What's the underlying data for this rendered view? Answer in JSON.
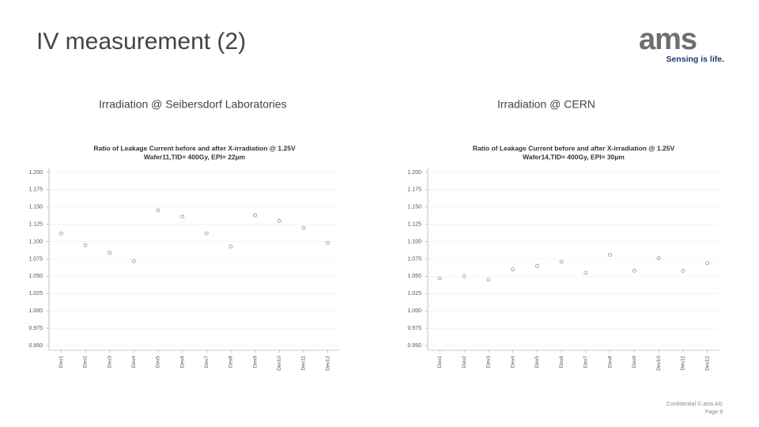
{
  "title": "IV measurement (2)",
  "logo": {
    "name": "ams",
    "tagline": "Sensing is life."
  },
  "panels": [
    "Irradiation @ Seibersdorf Laboratories",
    "Irradiation @ CERN"
  ],
  "footer": {
    "confidential": "Confidential © ams AG",
    "page": "Page 9"
  },
  "chart_data": [
    {
      "type": "scatter",
      "title": "Ratio of Leakage Current before and after X-irradiation @ 1.25V",
      "subtitle": "Wafer11,TID= 400Gy, EPI= 22µm",
      "categories": [
        "Dev1",
        "Dev2",
        "Dev3",
        "Dev4",
        "Dev5",
        "Dev6",
        "Dev7",
        "Dev8",
        "Dev9",
        "Dev10",
        "Dev11",
        "Dev12"
      ],
      "values": [
        1.112,
        1.095,
        1.084,
        1.072,
        1.145,
        1.136,
        1.112,
        1.093,
        1.138,
        1.13,
        1.12,
        1.098
      ],
      "color": "#8a8fb0",
      "grid": true,
      "ylim": [
        0.95,
        1.2
      ],
      "yticks": [
        {
          "value": 1.2,
          "label": "1.200"
        },
        {
          "value": 1.175,
          "label": "1.175"
        },
        {
          "value": 1.15,
          "label": "1.150"
        },
        {
          "value": 1.125,
          "label": "1.125"
        },
        {
          "value": 1.1,
          "label": "1.100"
        },
        {
          "value": 1.075,
          "label": "1.075"
        },
        {
          "value": 1.05,
          "label": "1.050"
        },
        {
          "value": 1.025,
          "label": "1.025"
        },
        {
          "value": 1,
          "label": "1.000"
        },
        {
          "value": 0.975,
          "label": "0.975"
        },
        {
          "value": 0.95,
          "label": "0.950"
        }
      ]
    },
    {
      "type": "scatter",
      "title": "Ratio of Leakage Current before and after X-irradiation @ 1.25V",
      "subtitle": "Wafer14,TID= 400Gy, EPI= 30µm",
      "categories": [
        "Dev1",
        "Dev2",
        "Dev3",
        "Dev4",
        "Dev5",
        "Dev6",
        "Dev7",
        "Dev8",
        "Dev9",
        "Dev10",
        "Dev11",
        "Dev12"
      ],
      "values": [
        1.047,
        1.05,
        1.045,
        1.06,
        1.065,
        1.071,
        1.055,
        1.081,
        1.058,
        1.076,
        1.058,
        1.069
      ],
      "color": "#8a8fb0",
      "grid": true,
      "ylim": [
        0.95,
        1.2
      ],
      "yticks": [
        {
          "value": 1.2,
          "label": "1.200"
        },
        {
          "value": 1.175,
          "label": "1.175"
        },
        {
          "value": 1.15,
          "label": "1.150"
        },
        {
          "value": 1.125,
          "label": "1.125"
        },
        {
          "value": 1.1,
          "label": "1.100"
        },
        {
          "value": 1.075,
          "label": "1.075"
        },
        {
          "value": 1.05,
          "label": "1.050"
        },
        {
          "value": 1.025,
          "label": "1.025"
        },
        {
          "value": 1,
          "label": "1.000"
        },
        {
          "value": 0.975,
          "label": "0.975"
        },
        {
          "value": 0.95,
          "label": "0.950"
        }
      ]
    }
  ]
}
